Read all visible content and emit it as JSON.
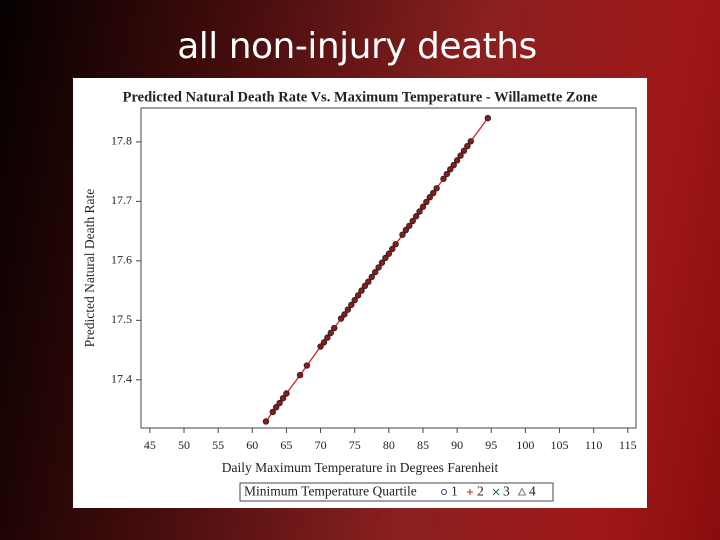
{
  "slide_title": "all non-injury deaths",
  "chart_data": {
    "type": "scatter",
    "title": "Predicted Natural Death Rate Vs. Maximum Temperature - Willamette Zone",
    "x_label": "Daily Maximum Temperature in Degrees Farenheit",
    "y_label": "Predicted Natural Death Rate",
    "xlim": [
      43.7,
      116.2
    ],
    "ylim": [
      17.319,
      17.857
    ],
    "xticks": [
      45,
      50,
      55,
      60,
      65,
      70,
      75,
      80,
      85,
      90,
      95,
      100,
      105,
      110,
      115
    ],
    "yticks": [
      17.4,
      17.5,
      17.6,
      17.7,
      17.8
    ],
    "line_color": "#d42020",
    "series": [
      {
        "name": "1",
        "color": "#8b1a1a",
        "x": [
          62,
          63,
          63.5,
          64,
          64.5,
          65,
          67,
          68,
          70,
          70.5,
          71,
          71.5,
          72,
          73,
          73.5,
          74,
          74.5,
          75,
          75.5,
          76,
          76.5,
          77,
          77.5,
          78,
          78.5,
          79,
          79.5,
          80,
          80.5,
          81,
          82,
          82.5,
          83,
          83.5,
          84,
          84.5,
          85,
          85.5,
          86,
          86.5,
          87,
          88,
          88.5,
          89,
          89.5,
          90,
          90.5,
          91,
          91.5,
          92,
          94.5
        ],
        "values": [
          17.33,
          17.346,
          17.354,
          17.361,
          17.369,
          17.377,
          17.408,
          17.424,
          17.456,
          17.463,
          17.471,
          17.479,
          17.487,
          17.503,
          17.51,
          17.518,
          17.526,
          17.534,
          17.542,
          17.55,
          17.558,
          17.565,
          17.573,
          17.581,
          17.589,
          17.597,
          17.605,
          17.612,
          17.62,
          17.628,
          17.644,
          17.652,
          17.659,
          17.667,
          17.675,
          17.683,
          17.691,
          17.699,
          17.707,
          17.714,
          17.722,
          17.738,
          17.746,
          17.754,
          17.761,
          17.769,
          17.777,
          17.785,
          17.793,
          17.801,
          17.84
        ]
      }
    ],
    "legend": {
      "title": "Minimum Temperature Quartile",
      "entries": [
        {
          "label": "1",
          "marker": "circle",
          "color": "#2a3a8a"
        },
        {
          "label": "2",
          "marker": "plus",
          "color": "#c02020"
        },
        {
          "label": "3",
          "marker": "x",
          "color": "#207030"
        },
        {
          "label": "4",
          "marker": "triangle",
          "color": "#777777"
        }
      ]
    }
  }
}
